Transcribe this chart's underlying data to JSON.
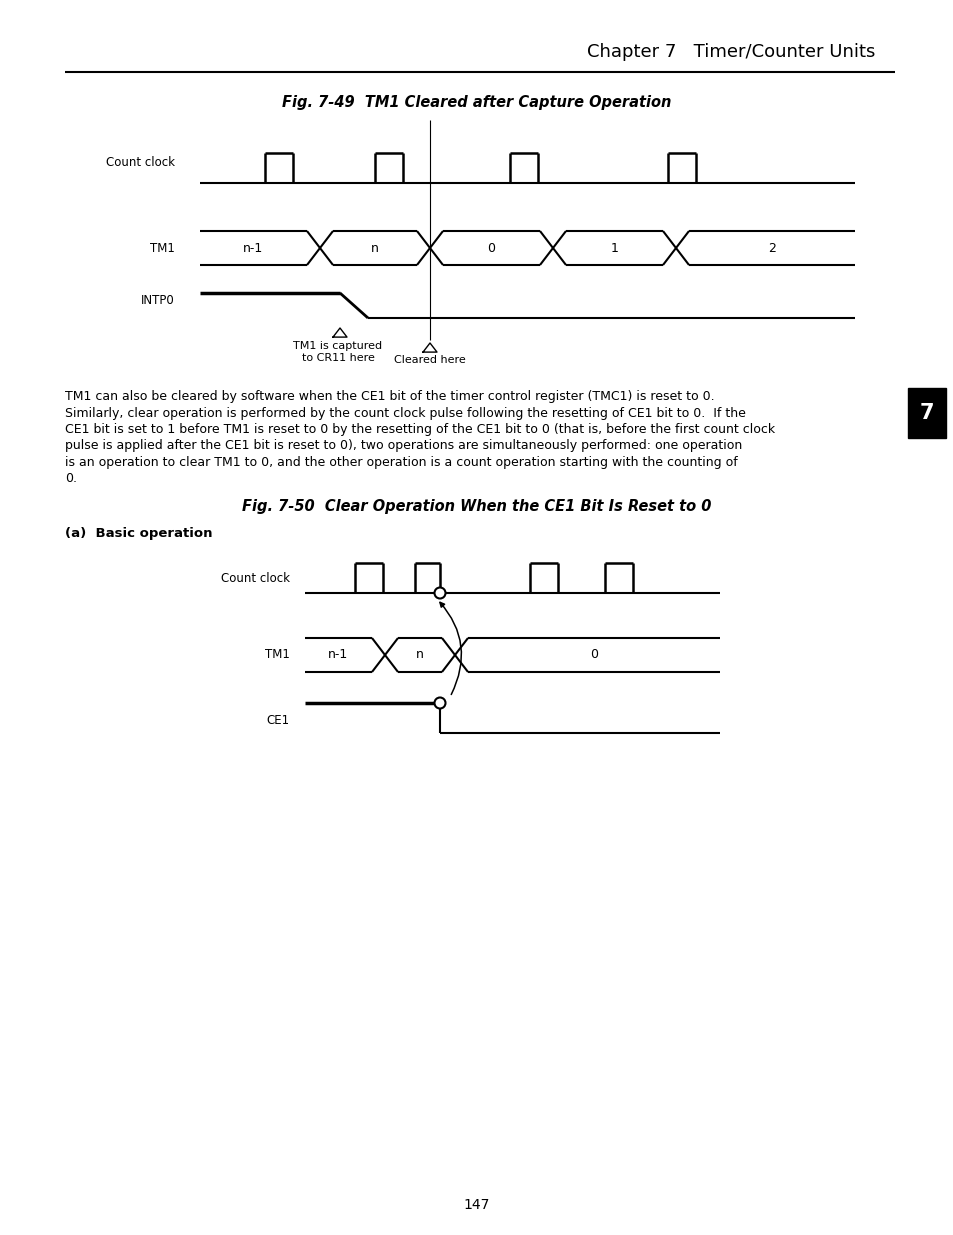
{
  "page_title": "Chapter 7   Timer/Counter Units",
  "fig1_title": "Fig. 7-49  TM1 Cleared after Capture Operation",
  "fig2_title": "Fig. 7-50  Clear Operation When the CE1 Bit Is Reset to 0",
  "fig2_subtitle": "(a)  Basic operation",
  "body_text": [
    "TM1 can also be cleared by software when the CE1 bit of the timer control register (TMC1) is reset to 0.",
    "Similarly, clear operation is performed by the count clock pulse following the resetting of CE1 bit to 0.  If the",
    "CE1 bit is set to 1 before TM1 is reset to 0 by the resetting of the CE1 bit to 0 (that is, before the first count clock",
    "pulse is applied after the CE1 bit is reset to 0), two operations are simultaneously performed: one operation",
    "is an operation to clear TM1 to 0, and the other operation is a count operation starting with the counting of",
    "0."
  ],
  "page_number": "147",
  "tab_number": "7",
  "bg_color": "#ffffff",
  "line_color": "#000000"
}
